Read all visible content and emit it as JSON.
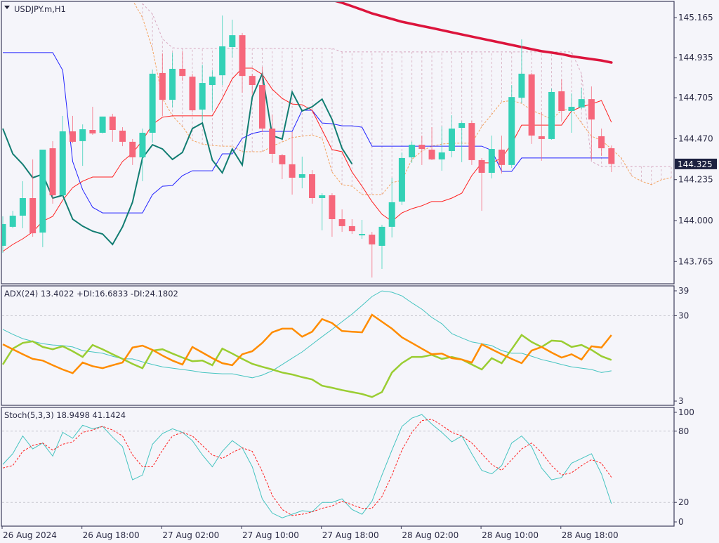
{
  "header": {
    "symbol": "USDJPY.m,H1",
    "menu_icon": "triangle-down-icon"
  },
  "current_price": "144.325",
  "colors": {
    "background": "#f5f5fa",
    "frame": "#3c3c5a",
    "bull": "#33d1b6",
    "bear": "#f6677b",
    "ma": "#dc143c",
    "tenkan": "#ff2020",
    "kijun": "#2323ff",
    "chikou": "#127d72",
    "senkou_a": "#f4a460",
    "senkou_b": "#d8a8c0",
    "cloud": "#dcb9c9",
    "adx": "#45c4c0",
    "plus_di": "#9acd32",
    "minus_di": "#ff8c00",
    "stoch_main": "#45c4c0",
    "stoch_signal": "#ff2020",
    "price_tag": "#1c2140"
  },
  "x_ticks": [
    {
      "index": 0,
      "label": "26 Aug 2024"
    },
    {
      "index": 8,
      "label": "26 Aug 18:00"
    },
    {
      "index": 16,
      "label": "27 Aug 02:00"
    },
    {
      "index": 24,
      "label": "27 Aug 10:00"
    },
    {
      "index": 32,
      "label": "27 Aug 18:00"
    },
    {
      "index": 40,
      "label": "28 Aug 02:00"
    },
    {
      "index": 48,
      "label": "28 Aug 10:00"
    },
    {
      "index": 56,
      "label": "28 Aug 18:00"
    }
  ],
  "chart_data": [
    {
      "type": "candlestick",
      "title": "USDJPY.m,H1",
      "ylim": [
        143.637,
        145.258
      ],
      "y_ticks": [
        "145.165",
        "144.935",
        "144.705",
        "144.470",
        "144.235",
        "144.000",
        "143.765"
      ],
      "grid": false,
      "open": [
        143.855,
        143.964,
        144.028,
        144.129,
        143.931,
        144.415,
        144.145,
        144.512,
        144.456,
        144.52,
        144.504,
        144.597,
        144.516,
        144.452,
        144.363,
        144.504,
        144.847,
        144.693,
        144.871,
        144.826,
        144.637,
        144.778,
        144.834,
        144.996,
        145.064,
        144.83,
        144.778,
        144.528,
        144.375,
        144.323,
        144.246,
        144.266,
        144.129,
        144.145,
        144.008,
        143.968,
        143.915,
        143.919,
        143.855,
        143.964,
        144.109,
        144.363,
        144.435,
        144.407,
        144.351,
        144.399,
        144.532,
        144.56,
        144.347,
        144.274,
        144.407,
        144.319,
        144.705,
        144.839,
        144.484,
        144.468,
        144.742,
        144.629,
        144.649,
        144.697,
        144.484,
        144.415
      ],
      "high": [
        144.024,
        144.056,
        144.226,
        144.351,
        144.407,
        144.456,
        144.601,
        144.601,
        144.552,
        144.653,
        144.597,
        144.613,
        144.536,
        144.468,
        144.528,
        144.867,
        144.96,
        144.964,
        144.972,
        144.843,
        144.895,
        144.863,
        145.177,
        145.153,
        145.077,
        144.843,
        144.883,
        144.609,
        144.383,
        144.508,
        144.367,
        144.29,
        144.157,
        144.157,
        144.064,
        144.008,
        144.004,
        143.935,
        143.976,
        144.246,
        144.391,
        144.452,
        144.488,
        144.536,
        144.54,
        144.605,
        144.568,
        144.572,
        144.359,
        144.488,
        144.488,
        144.778,
        145.04,
        144.847,
        144.625,
        144.758,
        144.81,
        144.73,
        144.762,
        144.77,
        144.528,
        144.431
      ],
      "low": [
        143.814,
        143.956,
        143.956,
        143.907,
        143.847,
        144.097,
        144.137,
        144.444,
        144.314,
        144.492,
        144.5,
        144.452,
        144.427,
        144.319,
        144.226,
        144.448,
        144.601,
        144.649,
        144.802,
        144.621,
        144.568,
        144.633,
        144.778,
        144.935,
        144.734,
        144.722,
        144.508,
        144.331,
        144.238,
        144.149,
        144.185,
        144.097,
        143.944,
        143.907,
        143.935,
        143.923,
        143.895,
        143.673,
        143.722,
        143.903,
        144.089,
        144.331,
        144.319,
        144.347,
        144.286,
        144.363,
        144.335,
        144.319,
        144.056,
        144.242,
        144.27,
        144.302,
        144.673,
        144.44,
        144.343,
        144.464,
        144.568,
        144.504,
        144.641,
        144.351,
        144.371,
        144.278
      ],
      "close": [
        143.98,
        144.028,
        144.129,
        143.927,
        144.407,
        144.145,
        144.512,
        144.452,
        144.524,
        144.5,
        144.597,
        144.52,
        144.452,
        144.363,
        144.504,
        144.843,
        144.693,
        144.871,
        144.83,
        144.633,
        144.79,
        144.826,
        145.0,
        145.064,
        144.83,
        144.778,
        144.528,
        144.383,
        144.323,
        144.246,
        144.266,
        144.129,
        144.145,
        144.008,
        143.968,
        143.939,
        143.923,
        143.863,
        143.964,
        144.105,
        144.359,
        144.435,
        144.411,
        144.351,
        144.391,
        144.528,
        144.56,
        144.347,
        144.274,
        144.411,
        144.319,
        144.709,
        144.843,
        144.488,
        144.468,
        144.738,
        144.629,
        144.653,
        144.697,
        144.58,
        144.415,
        144.325
      ],
      "overlays": {
        "ma": {
          "start_index": 33,
          "values": [
            145.266,
            145.25,
            145.23,
            145.21,
            145.189,
            145.173,
            145.157,
            145.141,
            145.129,
            145.117,
            145.105,
            145.093,
            145.08,
            145.068,
            145.056,
            145.044,
            145.032,
            145.02,
            145.008,
            144.996,
            144.984,
            144.972,
            144.964,
            144.955,
            144.943,
            144.935,
            144.927,
            144.919,
            144.907
          ]
        },
        "tenkan": {
          "start_index": 0,
          "values": [
            143.823,
            143.863,
            143.895,
            143.935,
            143.996,
            144.024,
            144.117,
            144.189,
            144.226,
            144.25,
            144.25,
            144.25,
            144.339,
            144.387,
            144.46,
            144.552,
            144.593,
            144.601,
            144.601,
            144.601,
            144.601,
            144.601,
            144.701,
            144.814,
            144.875,
            144.875,
            144.839,
            144.754,
            144.701,
            144.669,
            144.665,
            144.633,
            144.52,
            144.407,
            144.395,
            144.278,
            144.197,
            144.109,
            144.036,
            143.996,
            144.044,
            144.068,
            144.085,
            144.109,
            144.109,
            144.129,
            144.157,
            144.258,
            144.331,
            144.331,
            144.359,
            144.44,
            144.548,
            144.548,
            144.548,
            144.548,
            144.548,
            144.629,
            144.653,
            144.669,
            144.689,
            144.564
          ]
        },
        "kijun": {
          "start_index": 0,
          "values": [
            144.964,
            144.964,
            144.964,
            144.964,
            144.964,
            144.964,
            144.863,
            144.339,
            144.177,
            144.076,
            144.044,
            144.044,
            144.044,
            144.044,
            144.044,
            144.149,
            144.197,
            144.201,
            144.258,
            144.286,
            144.286,
            144.286,
            144.383,
            144.383,
            144.472,
            144.5,
            144.512,
            144.512,
            144.512,
            144.512,
            144.633,
            144.633,
            144.56,
            144.556,
            144.544,
            144.544,
            144.536,
            144.427,
            144.427,
            144.427,
            144.427,
            144.427,
            144.427,
            144.427,
            144.427,
            144.427,
            144.427,
            144.427,
            144.427,
            144.403,
            144.282,
            144.282,
            144.359,
            144.359,
            144.359,
            144.359,
            144.359,
            144.359,
            144.359,
            144.359,
            144.359,
            144.359
          ]
        },
        "chikou": {
          "start_index": 0,
          "values": [
            144.528,
            144.383,
            144.323,
            144.246,
            144.266,
            144.129,
            144.145,
            144.008,
            143.968,
            143.939,
            143.923,
            143.863,
            143.964,
            144.105,
            144.359,
            144.435,
            144.411,
            144.351,
            144.391,
            144.528,
            144.56,
            144.347,
            144.274,
            144.411,
            144.319,
            144.709,
            144.843,
            144.488,
            144.468,
            144.738,
            144.629,
            144.653,
            144.697,
            144.58,
            144.415,
            144.325
          ]
        },
        "senkou_a": {
          "start_index": 13,
          "values": [
            145.266,
            145.165,
            144.984,
            144.701,
            144.601,
            144.54,
            144.46,
            144.439,
            144.431,
            144.427,
            144.427,
            144.395,
            144.395,
            144.395,
            144.427,
            144.451,
            144.476,
            144.484,
            144.492,
            144.472,
            144.278,
            144.206,
            144.197,
            144.149,
            144.149,
            144.149,
            144.218,
            144.23,
            144.351,
            144.399,
            144.427,
            144.439,
            144.444,
            144.444,
            144.444,
            144.54,
            144.609,
            144.681,
            144.689,
            144.673,
            144.633,
            144.609,
            144.58,
            144.633,
            144.641,
            144.56,
            144.484,
            144.46,
            144.411,
            144.359,
            144.258,
            144.226,
            144.206,
            144.234,
            144.246
          ]
        },
        "senkou_b": {
          "start_index": 14,
          "values": [
            145.246,
            145.185,
            145.044,
            144.992,
            144.988,
            144.988,
            144.988,
            144.988,
            144.988,
            144.988,
            144.988,
            144.988,
            144.988,
            144.988,
            144.988,
            144.988,
            144.988,
            144.988,
            144.988,
            144.988,
            144.968,
            144.968,
            144.968,
            144.968,
            144.968,
            144.968,
            144.968,
            144.968,
            144.968,
            144.968,
            144.968,
            144.968,
            144.968,
            144.968,
            144.968,
            144.968,
            144.968,
            144.968,
            144.968,
            144.968,
            144.968,
            144.968,
            144.968,
            144.968,
            144.843,
            144.339,
            144.31,
            144.31,
            144.31,
            144.31,
            144.31,
            144.31,
            144.31,
            144.31
          ]
        }
      }
    },
    {
      "type": "line",
      "title": "ADX(24) 13.4022 +DI:16.6833 -DI:24.1802",
      "ylim": [
        3,
        39
      ],
      "y_ticks": [
        "39",
        "30",
        "3"
      ],
      "level_lines": [
        30
      ],
      "series": [
        {
          "key": "adx",
          "values": [
            25.9,
            24.4,
            23.1,
            22.3,
            21.6,
            21.2,
            21.0,
            20.6,
            19.5,
            19.1,
            18.7,
            17.8,
            17.0,
            17.0,
            16.1,
            15.3,
            14.6,
            14.2,
            13.8,
            13.4,
            12.9,
            12.7,
            12.5,
            12.5,
            11.9,
            11.3,
            12.1,
            13.4,
            15.3,
            17.2,
            19.1,
            21.4,
            23.7,
            25.9,
            28.2,
            30.5,
            33.1,
            35.8,
            37.5,
            37.1,
            36.0,
            33.9,
            32.0,
            29.5,
            27.6,
            24.6,
            23.3,
            22.1,
            21.6,
            21.0,
            19.5,
            18.7,
            18.7,
            17.8,
            16.8,
            16.1,
            15.3,
            14.6,
            14.2,
            13.8,
            12.9,
            13.4022
          ]
        },
        {
          "key": "plus_di",
          "values": [
            15.3,
            20.1,
            21.8,
            22.3,
            20.6,
            19.9,
            20.8,
            19.3,
            17.6,
            21.2,
            19.9,
            18.4,
            17.0,
            15.5,
            14.2,
            19.5,
            19.9,
            18.6,
            17.4,
            16.3,
            16.5,
            15.1,
            20.1,
            18.6,
            17.0,
            15.5,
            14.6,
            13.8,
            12.9,
            12.3,
            11.5,
            10.8,
            8.9,
            8.3,
            7.6,
            7.0,
            6.4,
            5.5,
            7.0,
            12.9,
            15.7,
            17.6,
            17.6,
            18.2,
            17.0,
            17.6,
            16.8,
            15.3,
            13.8,
            17.2,
            15.7,
            19.9,
            24.2,
            22.1,
            20.6,
            22.5,
            22.3,
            20.6,
            21.2,
            19.7,
            17.8,
            16.6833
          ]
        },
        {
          "key": "minus_di",
          "values": [
            21.4,
            19.9,
            18.4,
            17.0,
            16.5,
            15.1,
            13.8,
            12.7,
            15.9,
            14.8,
            14.2,
            15.1,
            15.9,
            20.4,
            21.0,
            19.7,
            18.0,
            16.5,
            15.3,
            20.6,
            18.9,
            17.2,
            15.7,
            15.1,
            18.4,
            19.3,
            21.8,
            25.0,
            26.1,
            26.1,
            23.7,
            25.2,
            29.0,
            27.8,
            25.4,
            25.2,
            25.0,
            30.3,
            28.2,
            26.1,
            23.5,
            21.8,
            20.1,
            18.4,
            18.6,
            17.2,
            16.8,
            15.9,
            21.4,
            19.9,
            18.4,
            17.0,
            15.7,
            19.5,
            20.6,
            18.9,
            17.4,
            18.4,
            16.8,
            20.8,
            20.4,
            24.1802
          ]
        }
      ]
    },
    {
      "type": "line",
      "title": "Stoch(5,3,3) 18.9498 41.1424",
      "ylim": [
        0,
        100
      ],
      "y_ticks": [
        "100",
        "80",
        "20",
        "0"
      ],
      "level_lines": [
        80,
        20
      ],
      "series": [
        {
          "key": "stoch_main",
          "values": [
            52,
            61,
            76,
            65,
            70,
            59,
            79,
            74,
            85,
            82,
            84,
            75,
            67,
            39,
            43,
            69,
            78,
            82,
            79,
            72,
            60,
            50,
            63,
            72,
            66,
            50,
            23,
            11,
            7,
            10,
            13,
            12,
            20,
            20,
            23,
            14,
            10,
            21,
            43,
            64,
            84,
            91,
            94,
            86,
            79,
            71,
            76,
            61,
            47,
            44,
            51,
            70,
            76,
            67,
            49,
            39,
            41,
            53,
            57,
            61,
            44,
            18.9498
          ]
        },
        {
          "key": "stoch_signal",
          "values": [
            49,
            51,
            63,
            68,
            70,
            64,
            69,
            71,
            79,
            81,
            84,
            81,
            76,
            60,
            50,
            50,
            64,
            76,
            79,
            76,
            68,
            60,
            57,
            62,
            66,
            63,
            46,
            26,
            14,
            9,
            10,
            12,
            15,
            17,
            21,
            18,
            15,
            15,
            25,
            43,
            64,
            79,
            89,
            90,
            85,
            79,
            76,
            70,
            61,
            52,
            47,
            56,
            65,
            70,
            62,
            51,
            43,
            45,
            51,
            56,
            53,
            41.1424
          ]
        }
      ]
    }
  ]
}
